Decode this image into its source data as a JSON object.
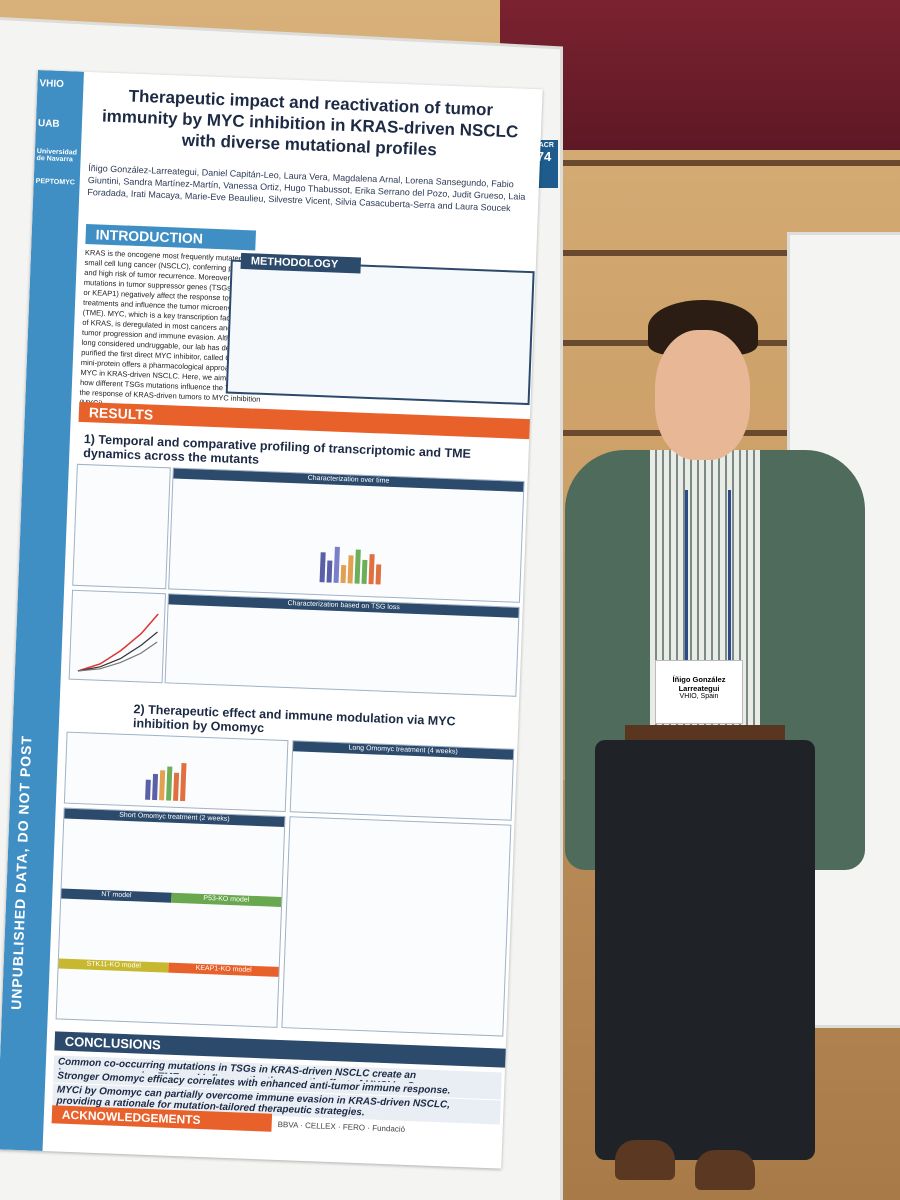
{
  "poster": {
    "title": "Therapeutic impact and reactivation of tumor immunity by MYC inhibition in KRAS-driven NSCLC with diverse mutational profiles",
    "authors": "Íñigo González-Larreategui, Daniel Capitán-Leo, Laura Vera, Magdalena Arnal, Lorena Sansegundo, Fabio Giuntini, Sandra Martínez-Martín, Vanessa Ortiz, Hugo Thabussot, Erika Serrano del Pozo, Judit Grueso, Laia Foradada, Irati Macaya, Marie-Eve Beaulieu, Silvestre Vicent, Silvia Casacuberta-Serra and Laura Soucek",
    "side_text": "UNPUBLISHED DATA, DO NOT POST",
    "logos": [
      "VHIO",
      "UAB",
      "Universidad de Navarra",
      "PEPTOMYC"
    ],
    "badge_number": "74",
    "badge_label": "EACR",
    "sections": {
      "introduction": "INTRODUCTION",
      "methodology": "METHODOLOGY",
      "results": "RESULTS",
      "conclusions": "CONCLUSIONS",
      "acknowledgements": "ACKNOWLEDGEMENTS"
    },
    "intro_text": "KRAS is the oncogene most frequently mutated in non-small cell lung cancer (NSCLC), conferring poor prognosis and high risk of tumor recurrence. Moreover, concomitant mutations in tumor suppressor genes (TSGs: TP53, STK11 or KEAP1) negatively affect the response towards NSCLC treatments and influence the tumor microenvironment (TME). MYC, which is a key transcription factor downstream of KRAS, is deregulated in most cancers and promotes tumor progression and immune evasion. Although it was long considered undruggable, our lab has designed and purified the first direct MYC inhibitor, called Omomyc. This mini-protein offers a pharmacological approach to inhibit MYC in KRAS-driven NSCLC. Here, we aim to determine how different TSGs mutations influence the TME and impact the response of KRAS-driven tumors to MYC inhibition (MYCi).",
    "result_headings": [
      "1) Temporal and comparative profiling of transcriptomic and TME dynamics across the mutants",
      "2) Therapeutic effect and immune modulation via MYC inhibition by Omomyc"
    ],
    "panel_labels": [
      "Characterization over time",
      "Characterization based on TSG loss",
      "Short Omomyc treatment (2 weeks)",
      "Long Omomyc treatment (4 weeks)",
      "NT model",
      "P53-KO model",
      "STK11-KO model",
      "KEAP1-KO model"
    ],
    "conclusions": [
      "Common co-occurring mutations in TSGs in KRAS-driven NSCLC create an immunosuppressive TME and influence the therapeutic effect of MYCi by Omomyc.",
      "Stronger Omomyc efficacy correlates with enhanced anti-tumor immune response.",
      "MYCi by Omomyc can partially overcome immune evasion in KRAS-driven NSCLC, providing a rationale for mutation-tailored therapeutic strategies."
    ],
    "sponsors": [
      "BBVA",
      "CELLEX",
      "FERO",
      "Fundació"
    ]
  },
  "name_badge": {
    "name": "Íñigo González Larreategui",
    "org": "VHIO, Spain"
  },
  "colors": {
    "poster_blue": "#3f8ec4",
    "poster_navy": "#2c4a6b",
    "poster_orange": "#e8602a",
    "jacket": "#4f6b5c"
  }
}
